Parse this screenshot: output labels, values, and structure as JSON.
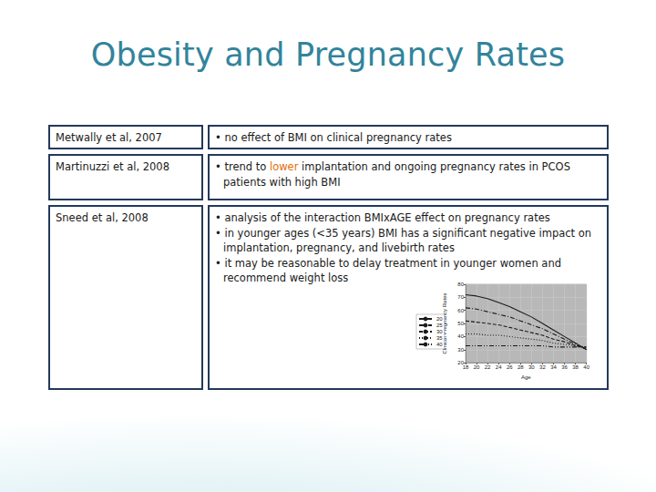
{
  "title": "Obesity and Pregnancy Rates",
  "table": {
    "rows": [
      {
        "study": "Metwally et al, 2007",
        "findings": [
          "• no effect of BMI on clinical pregnancy rates"
        ]
      },
      {
        "study": "Martinuzzi et al, 2008",
        "findings": [
          "• trend to lower implantation and ongoing pregnancy rates in PCOS patients with high BMI"
        ],
        "highlight": "lower"
      },
      {
        "study": "Sneed et al, 2008",
        "findings": [
          "• analysis of the interaction BMIxAGE effect on pregnancy rates",
          "• in younger ages (<35 years) BMI has a significant negative impact on implantation, pregnancy, and livebirth rates",
          "• it may be reasonable to delay treatment in younger women and recommend weight loss"
        ]
      }
    ]
  },
  "chart_data": {
    "type": "line",
    "x_label": "Age",
    "y_label": "Clinical Pregnancy Rates",
    "x": [
      18,
      20,
      22,
      24,
      26,
      28,
      30,
      32,
      34,
      36,
      38,
      40
    ],
    "series": [
      {
        "name": "20",
        "color": "#1a1a1a",
        "line_style": "solid",
        "values": [
          72,
          71,
          69,
          66,
          63,
          59,
          55,
          50,
          45,
          40,
          35,
          30
        ]
      },
      {
        "name": "25",
        "color": "#1a1a1a",
        "line_style": "dashdot",
        "values": [
          62,
          61,
          59,
          57,
          55,
          52,
          49,
          46,
          42,
          38,
          34,
          30
        ]
      },
      {
        "name": "30",
        "color": "#1a1a1a",
        "line_style": "dashed",
        "values": [
          52,
          51,
          50,
          49,
          47,
          45,
          43,
          41,
          38,
          36,
          33,
          31
        ]
      },
      {
        "name": "35",
        "color": "#1a1a1a",
        "line_style": "dotted",
        "values": [
          42,
          42,
          41,
          41,
          40,
          39,
          38,
          37,
          35,
          34,
          33,
          32
        ]
      },
      {
        "name": "40",
        "color": "#1a1a1a",
        "line_style": "dashdotdot",
        "values": [
          33,
          33,
          33,
          33,
          33,
          33,
          33,
          33,
          32,
          32,
          32,
          32
        ]
      }
    ],
    "xlim": [
      18,
      40
    ],
    "xticks": [
      18,
      20,
      22,
      24,
      26,
      28,
      30,
      32,
      34,
      36,
      38,
      40
    ],
    "ylim": [
      20,
      80
    ],
    "yticks": [
      20,
      30,
      40,
      50,
      60,
      70,
      80
    ],
    "grid": true,
    "legend": "left"
  }
}
